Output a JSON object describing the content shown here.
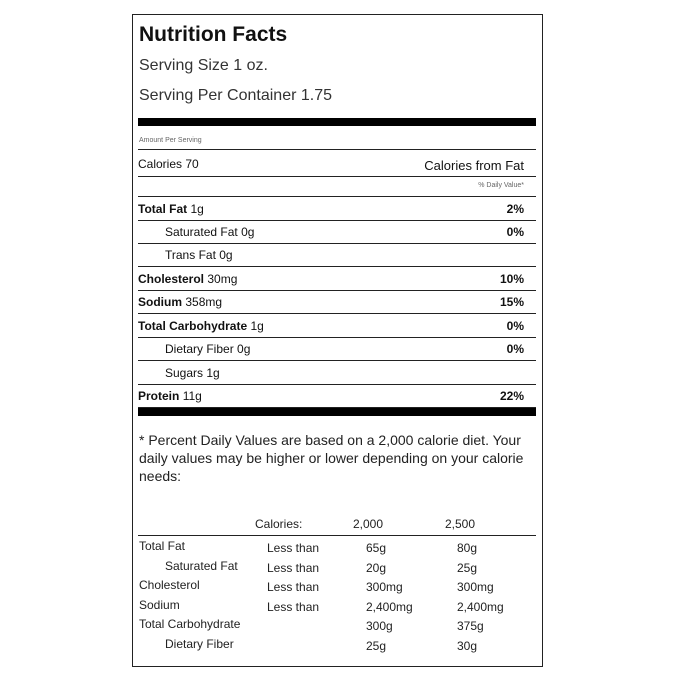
{
  "title": "Nutrition Facts",
  "serving_size": "Serving Size 1 oz.",
  "servings_per_container": "Serving Per Container 1.75",
  "amount_per_serving": "Amount Per Serving",
  "calories": {
    "name": "Calories 70",
    "from_fat": "Calories from Fat"
  },
  "daily_value_header": "% Daily Value*",
  "nutrients": [
    {
      "name": "Total Fat",
      "amount": "1g",
      "dv": "2%",
      "bold": true
    },
    {
      "name": "Saturated Fat",
      "amount": "0g",
      "dv": "0%",
      "indent": true
    },
    {
      "name": "Trans Fat",
      "amount": "0g",
      "indent": true
    },
    {
      "name": "Cholesterol",
      "amount": "30mg",
      "dv": "10%",
      "bold": true
    },
    {
      "name": "Sodium",
      "amount": "358mg",
      "dv": "15%",
      "bold": true
    },
    {
      "name": "Total Carbohydrate",
      "amount": "1g",
      "dv": "0%",
      "bold": true
    },
    {
      "name": "Dietary Fiber",
      "amount": "0g",
      "dv": "0%",
      "indent": true
    },
    {
      "name": "Sugars",
      "amount": "1g",
      "indent": true
    },
    {
      "name": "Protein",
      "amount": "11g",
      "dv": "22%",
      "bold": true
    }
  ],
  "footnote": "* Percent Daily Values are based on a 2,000 calorie diet. Your daily values may be higher or lower depending on your calorie needs:",
  "reference": {
    "header": [
      "Calories:",
      "2,000",
      "2,500"
    ],
    "rows": [
      {
        "name": "Total Fat",
        "limit": "Less than",
        "v2000": "65g",
        "v2500": "80g"
      },
      {
        "name": "Saturated Fat",
        "limit": "Less than",
        "v2000": "20g",
        "v2500": "25g",
        "indent": true
      },
      {
        "name": "Cholesterol",
        "limit": "Less than",
        "v2000": "300mg",
        "v2500": "300mg"
      },
      {
        "name": "Sodium",
        "limit": "Less than",
        "v2000": "2,400mg",
        "v2500": "2,400mg"
      },
      {
        "name": "Total Carbohydrate",
        "v2000": "300g",
        "v2500": "375g"
      },
      {
        "name": "Dietary Fiber",
        "v2000": "25g",
        "v2500": "30g",
        "indent": true
      }
    ]
  }
}
